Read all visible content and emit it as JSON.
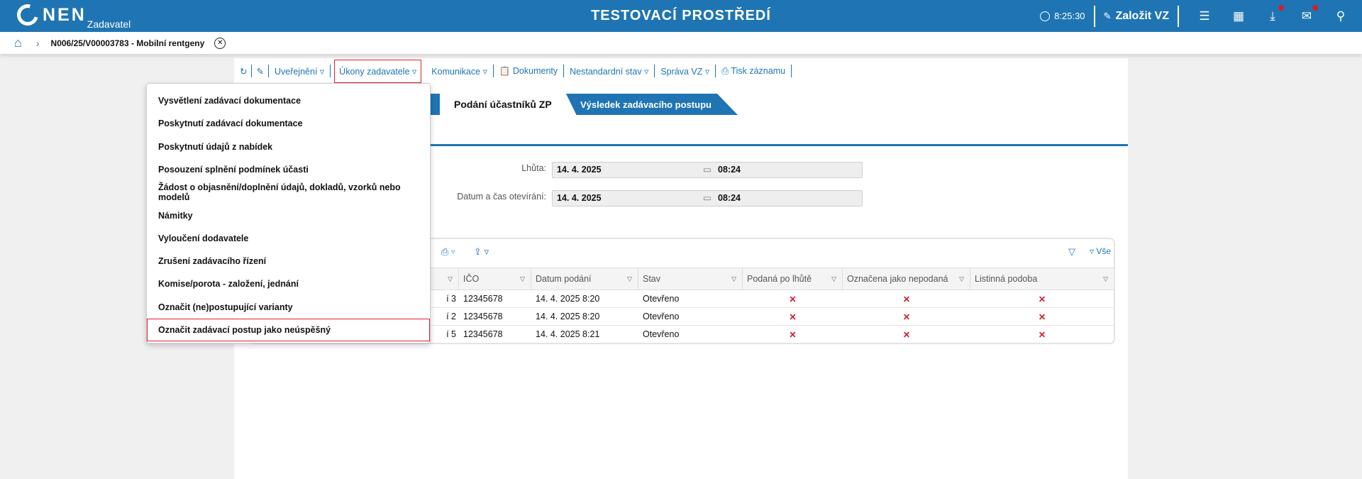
{
  "header": {
    "logo": "NEN",
    "logo_sub": "Zadavatel",
    "environment": "TESTOVACÍ PROSTŘEDÍ",
    "time": "8:25:30",
    "create_label": "Založit VZ",
    "accent": "#1f75b3",
    "badge_color": "#d0202b"
  },
  "breadcrumb": {
    "title": "N006/25/V00003783 - Mobilní rentgeny"
  },
  "toolbar": {
    "items": [
      "Uveřejnění",
      "Úkony zadavatele",
      "Komunikace",
      "Dokumenty",
      "Nestandardní stav",
      "Správa VZ",
      "Tisk záznamu"
    ]
  },
  "tabs": [
    {
      "label": "Podání účastníků ZP",
      "active": true
    },
    {
      "label": "Výsledek zadávacího postupu",
      "active": false
    }
  ],
  "form": {
    "deadline_label": "Lhůta:",
    "deadline_date": "14. 4. 2025",
    "deadline_time": "08:24",
    "open_label": "Datum a čas otevírání:",
    "open_date": "14. 4. 2025",
    "open_time": "08:24"
  },
  "grid": {
    "filter_all": "Vše",
    "columns": [
      "",
      "IČO",
      "Datum podání",
      "Stav",
      "Podaná po lhůtě",
      "Označena jako nepodaná",
      "Listinná podoba"
    ],
    "rows": [
      [
        "í 3",
        "12345678",
        "14. 4. 2025 8:20",
        "Otevřeno",
        "✕",
        "✕",
        "✕"
      ],
      [
        "í 2",
        "12345678",
        "14. 4. 2025 8:20",
        "Otevřeno",
        "✕",
        "✕",
        "✕"
      ],
      [
        "í 5",
        "12345678",
        "14. 4. 2025 8:21",
        "Otevřeno",
        "✕",
        "✕",
        "✕"
      ]
    ]
  },
  "dropdown": {
    "items": [
      "Vysvětlení zadávací dokumentace",
      "Poskytnutí zadávací dokumentace",
      "Poskytnutí údajů z nabídek",
      "Posouzení splnění podmínek účasti",
      "Žádost o objasnění/doplnění údajů, dokladů, vzorků nebo modelů",
      "Námitky",
      "Vyloučení dodavatele",
      "Zrušení zadávacího řízení",
      "Komise/porota - založení, jednání",
      "Označit (ne)postupující varianty",
      "Označit zadávací postup jako neúspěšný"
    ],
    "highlighted_index": 10
  }
}
